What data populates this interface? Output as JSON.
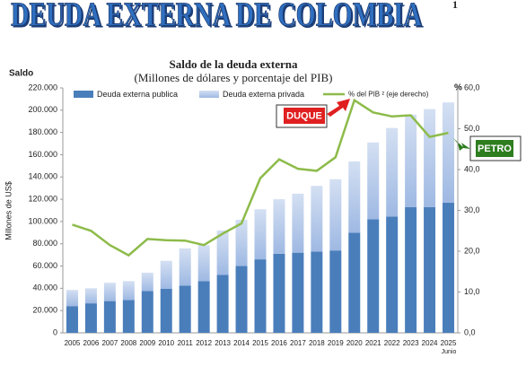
{
  "header": {
    "title": "DEUDA EXTERNA DE COLOMBIA",
    "page": "1"
  },
  "chart_data": {
    "type": "bar-line",
    "title": "Saldo de la deuda externa",
    "subtitle": "(Millones  de dólares y porcentaje del PIB)",
    "y_header": "Saldo",
    "y_label": "Millones de US$",
    "y2_header": "%",
    "x_note": "Junio",
    "categories": [
      "2005",
      "2006",
      "2007",
      "2008",
      "2009",
      "2010",
      "2011",
      "2012",
      "2013",
      "2014",
      "2015",
      "2016",
      "2017",
      "2018",
      "2019",
      "2020",
      "2021",
      "2022",
      "2023",
      "2024",
      "2025"
    ],
    "series": [
      {
        "name": "Deuda externa publica",
        "color": "#4a7ebb",
        "values": [
          24000,
          26500,
          28500,
          29500,
          37500,
          39500,
          42500,
          46500,
          52000,
          60000,
          66000,
          71000,
          72000,
          73000,
          74000,
          90000,
          102000,
          104500,
          113000,
          113000,
          117000
        ]
      },
      {
        "name": "Deuda externa privada",
        "color": "#9fb9e3",
        "values": [
          14500,
          13500,
          16500,
          17000,
          16500,
          25200,
          33400,
          32200,
          40000,
          41500,
          45000,
          49000,
          53000,
          59000,
          64000,
          64000,
          69000,
          79500,
          83000,
          88000,
          90000
        ]
      },
      {
        "name": "% del PIB ² (eje derecho)",
        "color": "#8dbb4a",
        "axis": "y2",
        "values": [
          26.5,
          25,
          21.5,
          19,
          23,
          22.7,
          22.6,
          21.5,
          24.3,
          26.8,
          37.9,
          42.5,
          40.2,
          39.7,
          43,
          57,
          54,
          53,
          53.3,
          48,
          49
        ]
      }
    ],
    "ylim": [
      0,
      220000
    ],
    "yticks": [
      0,
      {
        "value": 20000,
        "label": "20.000"
      },
      {
        "value": 40000,
        "label": "40.000"
      },
      {
        "value": 60000,
        "label": "60.000"
      },
      {
        "value": 80000,
        "label": "80.000"
      },
      {
        "value": 100000,
        "label": "100.000"
      },
      {
        "value": 120000,
        "label": "120.000"
      },
      {
        "value": 140000,
        "label": "140.000"
      },
      {
        "value": 160000,
        "label": "160.000"
      },
      {
        "value": 180000,
        "label": "180.000"
      },
      {
        "value": 200000,
        "label": "200.000"
      },
      {
        "value": 220000,
        "label": "220.000"
      }
    ],
    "y2lim": [
      0,
      60
    ],
    "y2ticks": [
      {
        "value": 0,
        "label": "0,0"
      },
      {
        "value": 10,
        "label": "10,0"
      },
      {
        "value": 20,
        "label": "20,0"
      },
      {
        "value": 30,
        "label": "30,0"
      },
      {
        "value": 40,
        "label": "40,0"
      },
      {
        "value": 50,
        "label": "50,0"
      },
      {
        "value": 60,
        "label": "60,0"
      }
    ],
    "grid": false,
    "annotations": [
      "DUQUE",
      "PETRO"
    ]
  }
}
